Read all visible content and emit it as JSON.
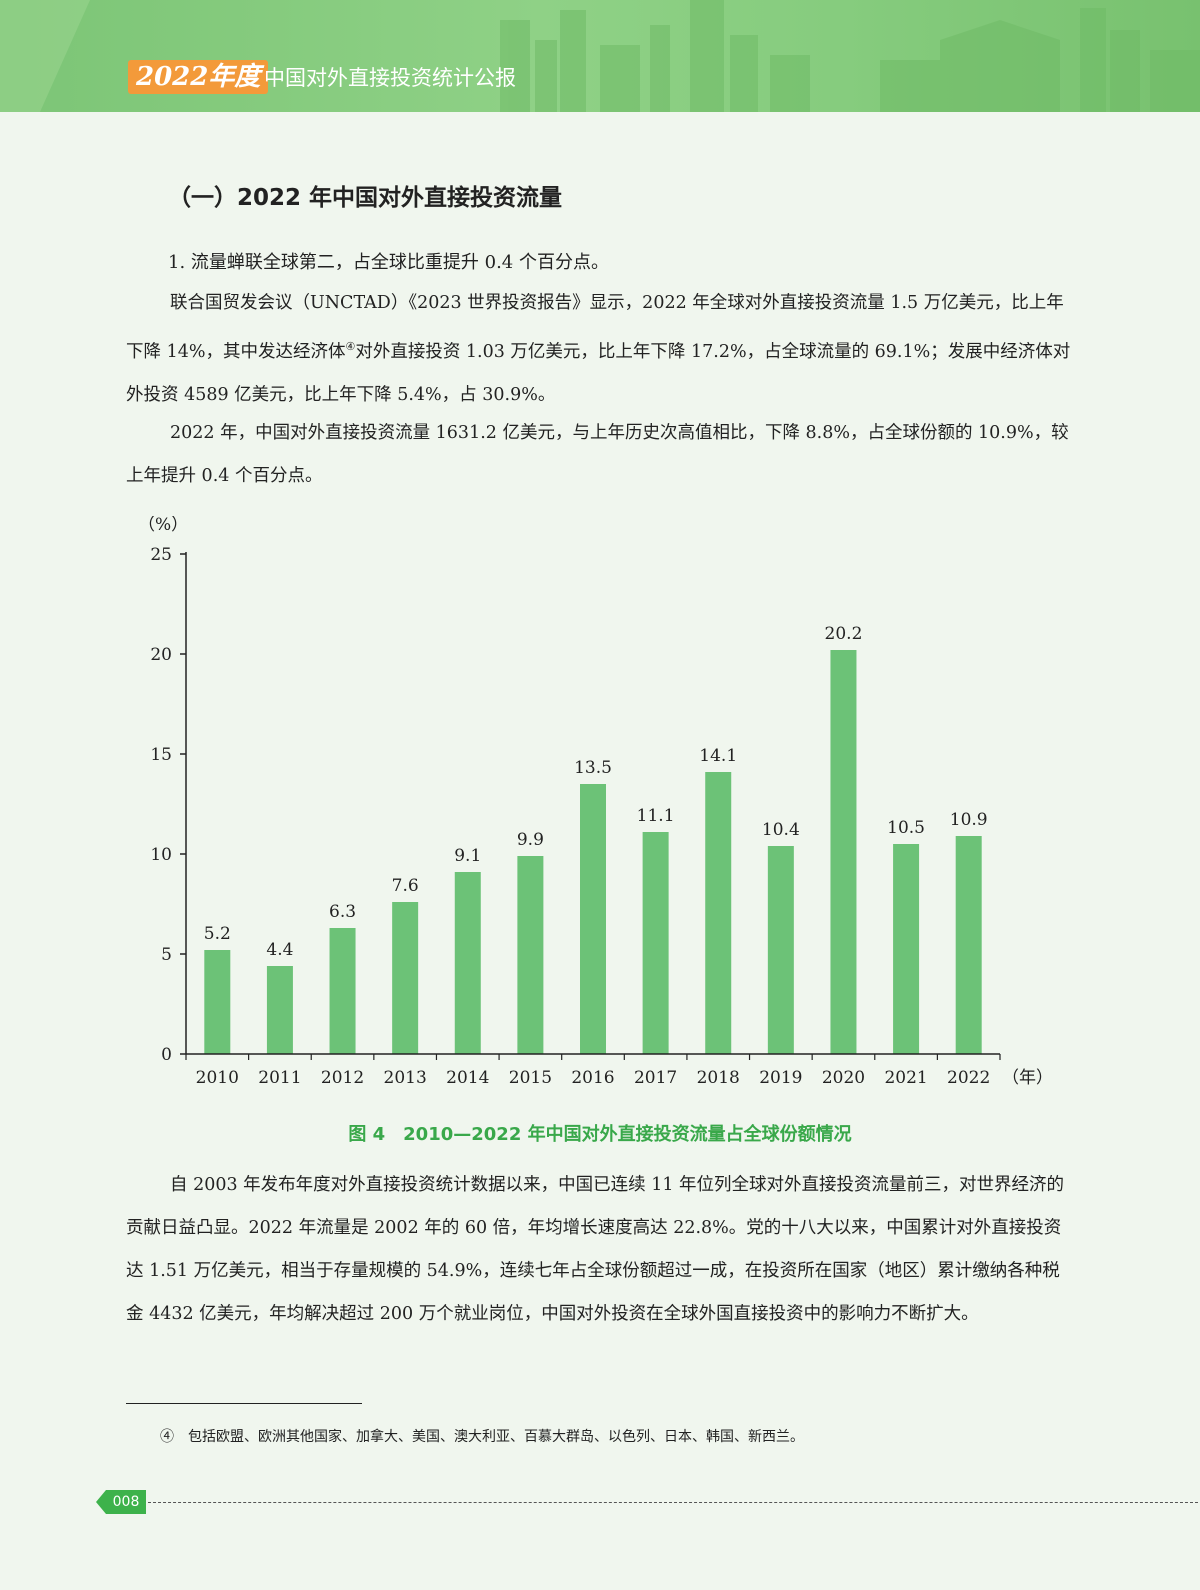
{
  "header": {
    "year_tag": "2022年度",
    "report_title": "中国对外直接投资统计公报"
  },
  "section_title": "（一）2022 年中国对外直接投资流量",
  "sub_title": "1. 流量蝉联全球第二，占全球比重提升 0.4 个百分点。",
  "para1": {
    "part1": "联合国贸发会议（UNCTAD）《2023 世界投资报告》显示，2022 年全球对外直接投资流量 1.5 万亿美元，比上年下降 14%，其中发达经济体",
    "footnote_mark": "④",
    "part2": "对外直接投资 1.03 万亿美元，比上年下降 17.2%，占全球流量的 69.1%；发展中经济体对外投资 4589 亿美元，比上年下降 5.4%，占 30.9%。"
  },
  "para2": "2022 年，中国对外直接投资流量 1631.2 亿美元，与上年历史次高值相比，下降 8.8%，占全球份额的 10.9%，较上年提升 0.4 个百分点。",
  "chart_data": {
    "type": "bar",
    "categories": [
      "2010",
      "2011",
      "2012",
      "2013",
      "2014",
      "2015",
      "2016",
      "2017",
      "2018",
      "2019",
      "2020",
      "2021",
      "2022"
    ],
    "values": [
      5.2,
      4.4,
      6.3,
      7.6,
      9.1,
      9.9,
      13.5,
      11.1,
      14.1,
      10.4,
      20.2,
      10.5,
      10.9
    ],
    "data_labels": [
      "5.2",
      "4.4",
      "6.3",
      "7.6",
      "9.1",
      "9.9",
      "13.5",
      "11.1",
      "14.1",
      "10.4",
      "20.2",
      "10.5",
      "10.9"
    ],
    "ylabel": "（%）",
    "xlabel": "（年）",
    "ylim": [
      0,
      25
    ],
    "yticks": [
      0,
      5,
      10,
      15,
      20,
      25
    ],
    "ytick_labels": [
      "0",
      "5",
      "10",
      "15",
      "20",
      "25"
    ],
    "bar_color": "#6cc277",
    "grid": false
  },
  "caption": "图 4　2010—2022 年中国对外直接投资流量占全球份额情况",
  "para3": "自 2003 年发布年度对外直接投资统计数据以来，中国已连续 11 年位列全球对外直接投资流量前三，对世界经济的贡献日益凸显。2022 年流量是 2002 年的 60 倍，年均增长速度高达 22.8%。党的十八大以来，中国累计对外直接投资达 1.51 万亿美元，相当于存量规模的 54.9%，连续七年占全球份额超过一成，在投资所在国家（地区）累计缴纳各种税金 4432 亿美元，年均解决超过 200 万个就业岗位，中国对外投资在全球外国直接投资中的影响力不断扩大。",
  "footnote": "④　包括欧盟、欧洲其他国家、加拿大、美国、澳大利亚、百慕大群岛、以色列、日本、韩国、新西兰。",
  "page_number": "008"
}
